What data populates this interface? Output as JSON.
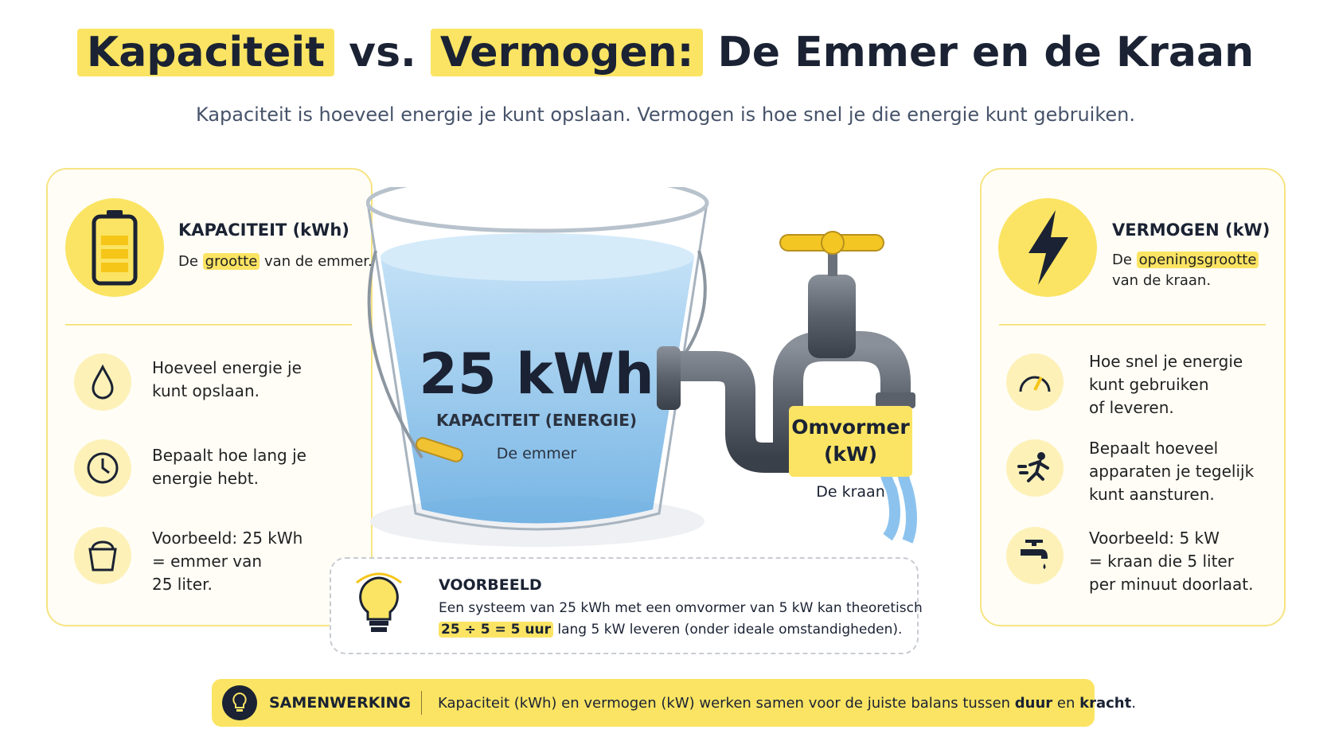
{
  "header": {
    "title_parts": [
      "Kapaciteit",
      "vs.",
      "Vermogen:",
      "De Emmer en de Kraan"
    ],
    "subtitle": "Kapaciteit is hoeveel energie je kunt opslaan. Vermogen is hoe snel je die energie kunt gebruiken."
  },
  "left_panel": {
    "heading": "KAPACITEIT (kWh)",
    "desc": [
      "De ",
      "grootte",
      " van de emmer."
    ],
    "items": [
      [
        "Hoeveel energie je",
        "kunt opslaan."
      ],
      [
        "Bepaalt hoe lang je",
        "energie hebt."
      ],
      [
        "Voorbeeld: 25 kWh",
        "= emmer van",
        "25 liter."
      ]
    ]
  },
  "right_panel": {
    "heading": "VERMOGEN (kW)",
    "desc": [
      "De ",
      "openingsgrootte",
      "van de kraan."
    ],
    "items": [
      [
        "Hoe snel je energie",
        "kunt gebruiken",
        "of leveren."
      ],
      [
        "Bepaalt hoeveel",
        "apparaten je tegelijk",
        "kunt aansturen."
      ],
      [
        "Voorbeeld: 5 kW",
        "= kraan die 5 liter",
        "per minuut doorlaat."
      ]
    ]
  },
  "bucket": {
    "value": "25 kWh",
    "label": "KAPACITEIT (ENERGIE)",
    "caption": "De emmer"
  },
  "tap": {
    "label": [
      "Omvormer",
      "(kW)"
    ],
    "caption": "De kraan"
  },
  "example": {
    "heading": "VOORBEELD",
    "line1": "Een systeem van 25 kWh met een omvormer van 5 kW kan theoretisch",
    "line2": [
      "25 ÷ 5 = 5 uur",
      " lang 5 kW leveren (onder ideale omstandigheden)."
    ]
  },
  "footer": {
    "heading": "SAMENWERKING",
    "text": [
      "Kapaciteit (kWh) en vermogen (kW) werken samen voor de juiste balans tussen ",
      "duur",
      " en ",
      "kracht",
      "."
    ]
  }
}
